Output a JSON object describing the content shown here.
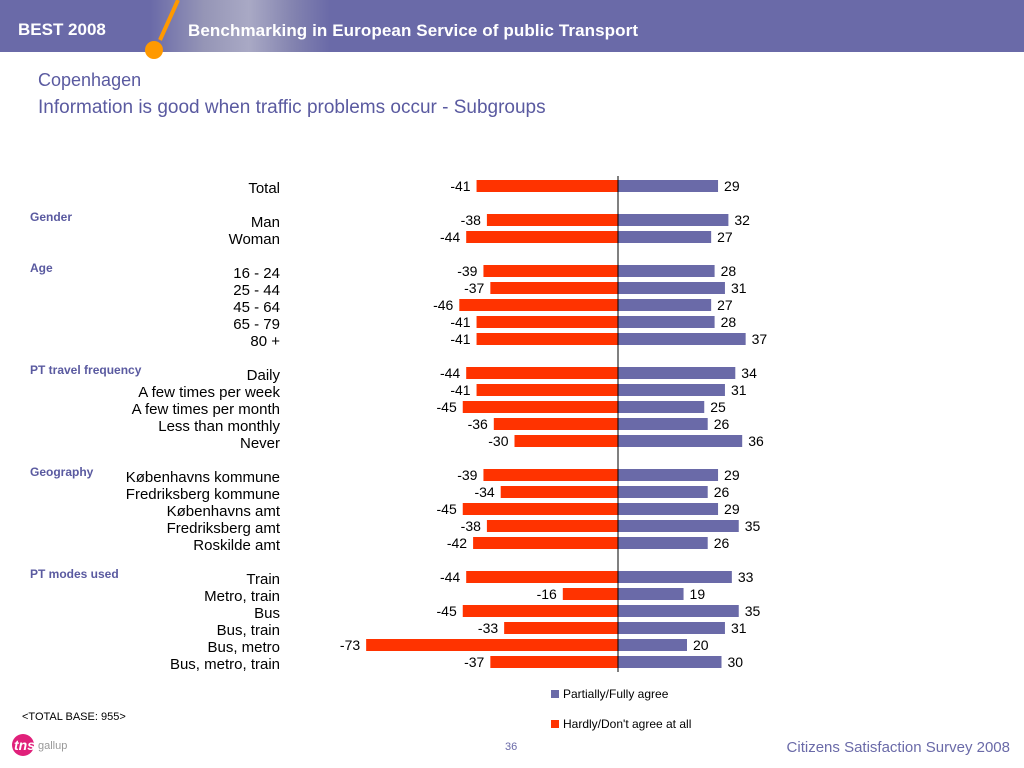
{
  "header": {
    "brand": "BEST 2008",
    "title": "Benchmarking in European Service of public Transport"
  },
  "slide": {
    "city": "Copenhagen",
    "subtitle": "Information is good when traffic problems occur - Subgroups"
  },
  "footer": {
    "base": "<TOTAL BASE: 955>",
    "logo_text": "tns",
    "logo_sub": "gallup",
    "page_number": "36",
    "survey_title": "Citizens Satisfaction Survey 2008"
  },
  "colors": {
    "agree": "#6a6aa8",
    "disagree": "#ff3300",
    "header": "#6a6aa8",
    "title": "#5a5aa0"
  },
  "chart_data": {
    "type": "bar",
    "orientation": "horizontal-diverging",
    "legend": [
      "Partially/Fully agree",
      "Hardly/Don't agree at all"
    ],
    "legend_position": "bottom-right",
    "groups": [
      {
        "name": "",
        "rows": [
          {
            "label": "Total",
            "disagree": -41,
            "agree": 29
          }
        ]
      },
      {
        "name": "Gender",
        "rows": [
          {
            "label": "Man",
            "disagree": -38,
            "agree": 32
          },
          {
            "label": "Woman",
            "disagree": -44,
            "agree": 27
          }
        ]
      },
      {
        "name": "Age",
        "rows": [
          {
            "label": "16 - 24",
            "disagree": -39,
            "agree": 28
          },
          {
            "label": "25 - 44",
            "disagree": -37,
            "agree": 31
          },
          {
            "label": "45 - 64",
            "disagree": -46,
            "agree": 27
          },
          {
            "label": "65 - 79",
            "disagree": -41,
            "agree": 28
          },
          {
            "label": "80 +",
            "disagree": -41,
            "agree": 37
          }
        ]
      },
      {
        "name": "PT travel frequency",
        "rows": [
          {
            "label": "Daily",
            "disagree": -44,
            "agree": 34
          },
          {
            "label": "A few times per week",
            "disagree": -41,
            "agree": 31
          },
          {
            "label": "A few times per month",
            "disagree": -45,
            "agree": 25
          },
          {
            "label": "Less than monthly",
            "disagree": -36,
            "agree": 26
          },
          {
            "label": "Never",
            "disagree": -30,
            "agree": 36
          }
        ]
      },
      {
        "name": "Geography",
        "rows": [
          {
            "label": "Københavns kommune",
            "disagree": -39,
            "agree": 29
          },
          {
            "label": "Fredriksberg kommune",
            "disagree": -34,
            "agree": 26
          },
          {
            "label": "Københavns amt",
            "disagree": -45,
            "agree": 29
          },
          {
            "label": "Fredriksberg amt",
            "disagree": -38,
            "agree": 35
          },
          {
            "label": "Roskilde amt",
            "disagree": -42,
            "agree": 26
          }
        ]
      },
      {
        "name": "PT modes used",
        "rows": [
          {
            "label": "Train",
            "disagree": -44,
            "agree": 33
          },
          {
            "label": "Metro, train",
            "disagree": -16,
            "agree": 19
          },
          {
            "label": "Bus",
            "disagree": -45,
            "agree": 35
          },
          {
            "label": "Bus, train",
            "disagree": -33,
            "agree": 31
          },
          {
            "label": "Bus, metro",
            "disagree": -73,
            "agree": 20
          },
          {
            "label": "Bus, metro, train",
            "disagree": -37,
            "agree": 30
          }
        ]
      }
    ]
  }
}
